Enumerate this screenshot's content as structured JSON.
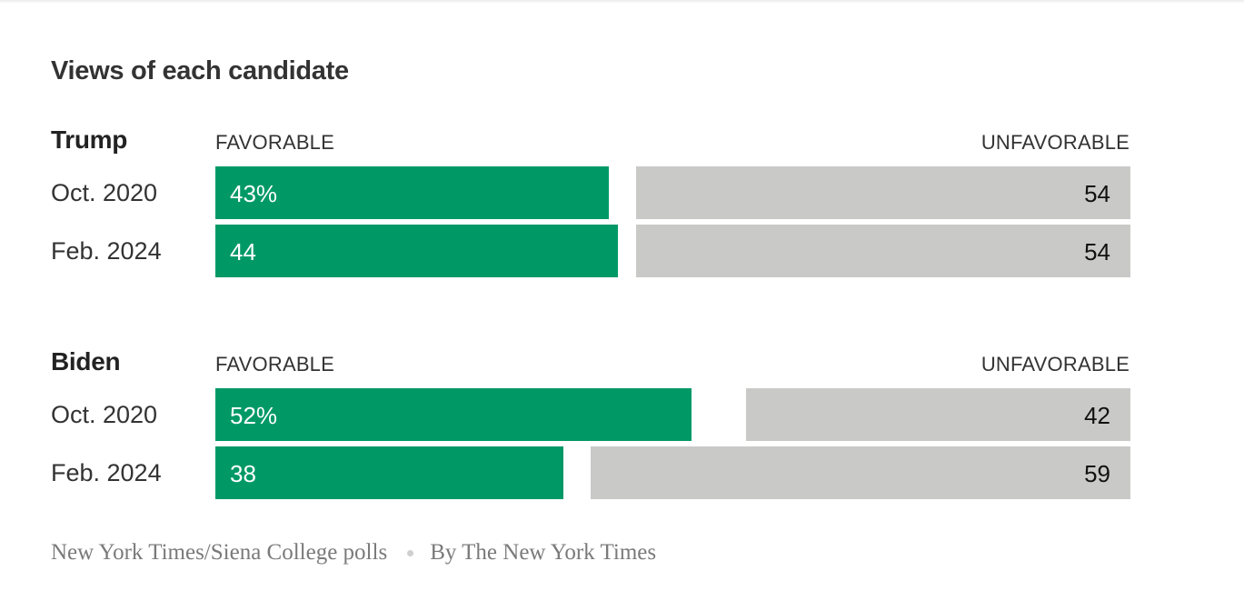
{
  "title": "Views of each candidate",
  "favorable_label": "FAVORABLE",
  "unfavorable_label": "UNFAVORABLE",
  "colors": {
    "favorable": "#009966",
    "unfavorable": "#c9c9c7"
  },
  "chart_data": {
    "type": "bar",
    "title": "Views of each candidate",
    "xlim": [
      0,
      100
    ],
    "groups": [
      {
        "candidate": "Trump",
        "rows": [
          {
            "period": "Oct. 2020",
            "favorable": 43,
            "unfavorable": 54,
            "favorable_text": "43%",
            "unfavorable_text": "54"
          },
          {
            "period": "Feb. 2024",
            "favorable": 44,
            "unfavorable": 54,
            "favorable_text": "44",
            "unfavorable_text": "54"
          }
        ]
      },
      {
        "candidate": "Biden",
        "rows": [
          {
            "period": "Oct. 2020",
            "favorable": 52,
            "unfavorable": 42,
            "favorable_text": "52%",
            "unfavorable_text": "42"
          },
          {
            "period": "Feb. 2024",
            "favorable": 38,
            "unfavorable": 59,
            "favorable_text": "38",
            "unfavorable_text": "59"
          }
        ]
      }
    ]
  },
  "source": {
    "text": "New York Times/Siena College polls",
    "credit": "By The New York Times"
  }
}
